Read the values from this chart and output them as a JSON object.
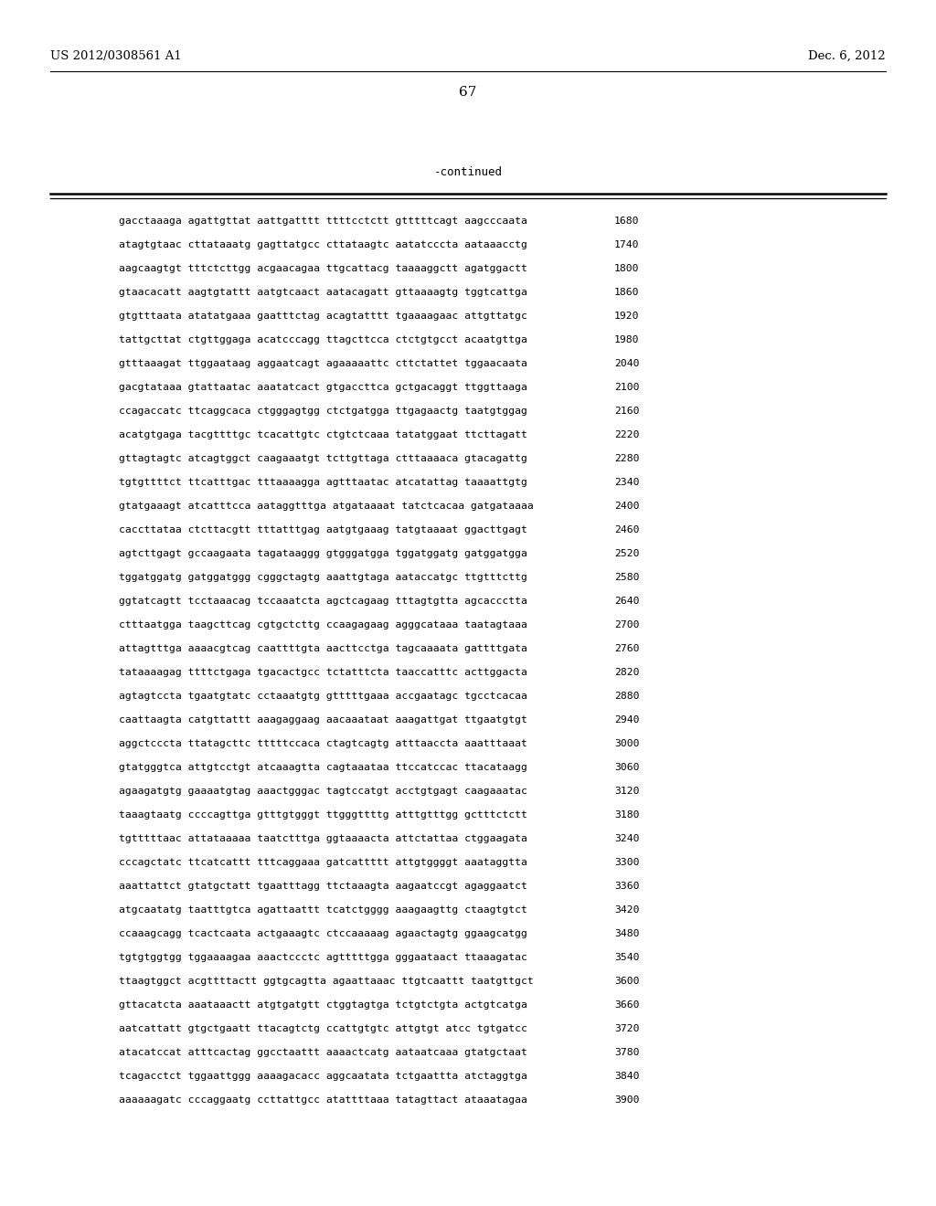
{
  "left_header": "US 2012/0308561 A1",
  "right_header": "Dec. 6, 2012",
  "page_number": "67",
  "continued_label": "-continued",
  "background_color": "#ffffff",
  "text_color": "#000000",
  "sequences": [
    {
      "seq": "gacctaaaga agattgttat aattgatttt ttttcctctt gtttttcagt aagcccaata",
      "num": "1680"
    },
    {
      "seq": "atagtgtaac cttataaatg gagttatgcc cttataagtc aatatcccta aataaacctg",
      "num": "1740"
    },
    {
      "seq": "aagcaagtgt tttctcttgg acgaacagaa ttgcattacg taaaaggctt agatggactt",
      "num": "1800"
    },
    {
      "seq": "gtaacacatt aagtgtattt aatgtcaact aatacagatt gttaaaagtg tggtcattga",
      "num": "1860"
    },
    {
      "seq": "gtgtttaata atatatgaaa gaatttctag acagtatttt tgaaaagaac attgttatgc",
      "num": "1920"
    },
    {
      "seq": "tattgcttat ctgttggaga acatcccagg ttagcttcca ctctgtgcct acaatgttga",
      "num": "1980"
    },
    {
      "seq": "gtttaaagat ttggaataag aggaatcagt agaaaaattc cttctattet tggaacaata",
      "num": "2040"
    },
    {
      "seq": "gacgtataaa gtattaatac aaatatcact gtgaccttca gctgacaggt ttggttaaga",
      "num": "2100"
    },
    {
      "seq": "ccagaccatc ttcaggcaca ctgggagtgg ctctgatgga ttgagaactg taatgtggag",
      "num": "2160"
    },
    {
      "seq": "acatgtgaga tacgttttgc tcacattgtc ctgtctcaaa tatatggaat ttcttagatt",
      "num": "2220"
    },
    {
      "seq": "gttagtagtc atcagtggct caagaaatgt tcttgttaga ctttaaaaca gtacagattg",
      "num": "2280"
    },
    {
      "seq": "tgtgttttct ttcatttgac tttaaaagga agtttaatac atcatattag taaaattgtg",
      "num": "2340"
    },
    {
      "seq": "gtatgaaagt atcatttcca aataggtttga atgataaaat tatctcacaa gatgataaaa",
      "num": "2400"
    },
    {
      "seq": "caccttataa ctcttacgtt tttatttgag aatgtgaaag tatgtaaaat ggacttgagt",
      "num": "2460"
    },
    {
      "seq": "agtcttgagt gccaagaata tagataaggg gtgggatgga tggatggatg gatggatgga",
      "num": "2520"
    },
    {
      "seq": "tggatggatg gatggatggg cgggctagtg aaattgtaga aataccatgc ttgtttcttg",
      "num": "2580"
    },
    {
      "seq": "ggtatcagtt tcctaaacag tccaaatcta agctcagaag tttagtgtta agcaccctta",
      "num": "2640"
    },
    {
      "seq": "ctttaatgga taagcttcag cgtgctcttg ccaagagaag agggcataaa taatagtaaa",
      "num": "2700"
    },
    {
      "seq": "attagtttga aaaacgtcag caattttgta aacttcctga tagcaaaata gattttgata",
      "num": "2760"
    },
    {
      "seq": "tataaaagag ttttctgaga tgacactgcc tctatttcta taaccatttc acttggacta",
      "num": "2820"
    },
    {
      "seq": "agtagtccta tgaatgtatc cctaaatgtg gtttttgaaa accgaatagc tgcctcacaa",
      "num": "2880"
    },
    {
      "seq": "caattaagta catgttattt aaagaggaag aacaaataat aaagattgat ttgaatgtgt",
      "num": "2940"
    },
    {
      "seq": "aggctcccta ttatagcttc tttttccaca ctagtcagtg atttaaccta aaatttaaat",
      "num": "3000"
    },
    {
      "seq": "gtatgggtca attgtcctgt atcaaagtta cagtaaataa ttccatccac ttacataagg",
      "num": "3060"
    },
    {
      "seq": "agaagatgtg gaaaatgtag aaactgggac tagtccatgt acctgtgagt caagaaatac",
      "num": "3120"
    },
    {
      "seq": "taaagtaatg ccccagttga gtttgtgggt ttgggttttg atttgtttgg gctttctctt",
      "num": "3180"
    },
    {
      "seq": "tgtttttaac attataaaaa taatctttga ggtaaaacta attctattaa ctggaagata",
      "num": "3240"
    },
    {
      "seq": "cccagctatc ttcatcattt tttcaggaaa gatcattttt attgtggggt aaataggtta",
      "num": "3300"
    },
    {
      "seq": "aaattattct gtatgctatt tgaatttagg ttctaaagta aagaatccgt agaggaatct",
      "num": "3360"
    },
    {
      "seq": "atgcaatatg taatttgtca agattaattt tcatctgggg aaagaagttg ctaagtgtct",
      "num": "3420"
    },
    {
      "seq": "ccaaagcagg tcactcaata actgaaagtc ctccaaaaag agaactagtg ggaagcatgg",
      "num": "3480"
    },
    {
      "seq": "tgtgtggtgg tggaaaagaa aaactccctc agtttttgga gggaataact ttaaagatac",
      "num": "3540"
    },
    {
      "seq": "ttaagtggct acgttttactt ggtgcagtta agaattaaac ttgtcaattt taatgttgct",
      "num": "3600"
    },
    {
      "seq": "gttacatcta aaataaactt atgtgatgtt ctggtagtga tctgtctgta actgtcatga",
      "num": "3660"
    },
    {
      "seq": "aatcattatt gtgctgaatt ttacagtctg ccattgtgtc attgtgt atcc tgtgatcc",
      "num": "3720"
    },
    {
      "seq": "atacatccat atttcactag ggcctaattt aaaactcatg aataatcaaa gtatgctaat",
      "num": "3780"
    },
    {
      "seq": "tcagacctct tggaattggg aaaagacacc aggcaatata tctgaattta atctaggtga",
      "num": "3840"
    },
    {
      "seq": "aaaaaagatc cccaggaatg ccttattgcc atattttaaa tatagttact ataaatagaa",
      "num": "3900"
    }
  ]
}
